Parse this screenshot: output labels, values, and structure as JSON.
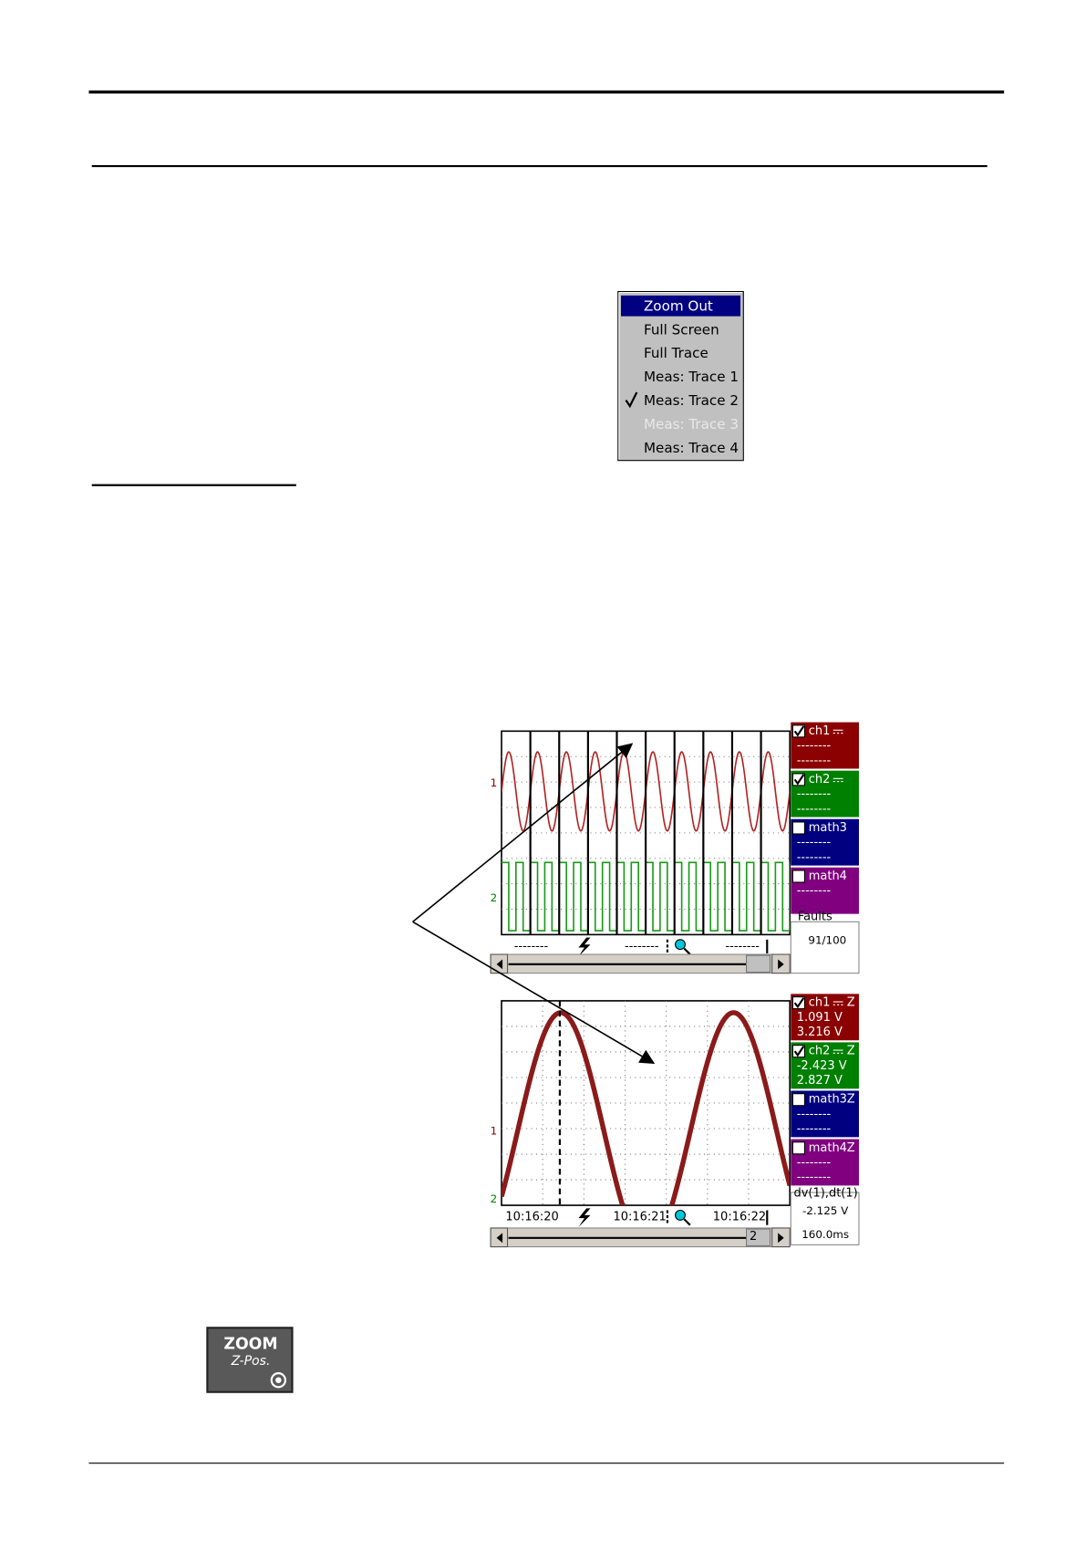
{
  "menu": {
    "items": [
      "Zoom Out",
      "Full Screen",
      "Full Trace",
      "Meas: Trace 1",
      "Meas: Trace 2",
      "Meas: Trace 3",
      "Meas: Trace 4"
    ]
  },
  "overview": {
    "y_markers": [
      "1",
      "2"
    ],
    "channels": [
      {
        "name": "ch1",
        "lines": [
          "--------",
          "--------"
        ]
      },
      {
        "name": "ch2",
        "lines": [
          "--------",
          "--------"
        ]
      },
      {
        "name": "math3",
        "lines": [
          "--------",
          "--------"
        ]
      },
      {
        "name": "math4",
        "lines": [
          "--------"
        ]
      }
    ],
    "status_title": "Faults",
    "status_value": "91/100",
    "footer": [
      "--------",
      "--------",
      "--------"
    ]
  },
  "zoomed": {
    "y_markers": [
      "1",
      "2"
    ],
    "channels": [
      {
        "name": "ch1",
        "tag": "Z",
        "lines": [
          "1.091 V",
          "3.216 V"
        ]
      },
      {
        "name": "ch2",
        "tag": "Z",
        "lines": [
          "-2.423 V",
          "2.827 V"
        ]
      },
      {
        "name": "math3",
        "tag": "Z",
        "lines": [
          "--------",
          "--------"
        ]
      },
      {
        "name": "math4",
        "tag": "Z",
        "lines": [
          "--------",
          "--------"
        ]
      }
    ],
    "status_title": "dv(1),dt(1)",
    "status_lines": [
      "-2.125 V",
      "160.0ms"
    ],
    "time_labels": [
      "10:16:20",
      "10:16:21",
      "10:16:22"
    ],
    "scroll_marker": "2"
  },
  "button": {
    "title": "ZOOM",
    "subtitle": "Z-Pos."
  }
}
